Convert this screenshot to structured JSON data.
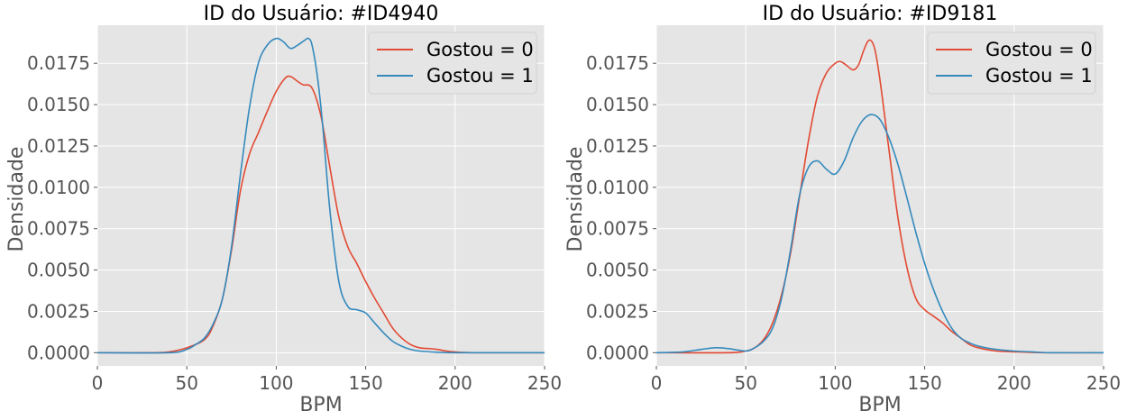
{
  "chart_data": [
    {
      "type": "line",
      "title": "ID do Usuário: #ID4940",
      "xlabel": "BPM",
      "ylabel": "Densidade",
      "xlim": [
        0,
        250
      ],
      "ylim": [
        -0.0008,
        0.0198
      ],
      "xticks": [
        0,
        50,
        100,
        150,
        200,
        250
      ],
      "xtick_labels": [
        "0",
        "50",
        "100",
        "150",
        "200",
        "250"
      ],
      "yticks": [
        0,
        0.0025,
        0.005,
        0.0075,
        0.01,
        0.0125,
        0.015,
        0.0175
      ],
      "ytick_labels": [
        "0.0000",
        "0.0025",
        "0.0050",
        "0.0075",
        "0.0100",
        "0.0125",
        "0.0150",
        "0.0175"
      ],
      "grid": true,
      "legend_position": "top-right",
      "series": [
        {
          "name": "Gostou = 0",
          "color": "#E24A33",
          "x": [
            0,
            30,
            40,
            50,
            60,
            65,
            70,
            75,
            80,
            85,
            90,
            95,
            100,
            105,
            108,
            112,
            115,
            120,
            125,
            130,
            135,
            140,
            145,
            150,
            155,
            160,
            165,
            170,
            175,
            180,
            185,
            190,
            195,
            200,
            210,
            250
          ],
          "y": [
            0,
            0,
            5e-05,
            0.0003,
            0.0008,
            0.0017,
            0.0033,
            0.0062,
            0.0098,
            0.012,
            0.0133,
            0.0146,
            0.0158,
            0.0166,
            0.0167,
            0.0164,
            0.0162,
            0.016,
            0.0143,
            0.0112,
            0.0082,
            0.0064,
            0.0054,
            0.0043,
            0.0033,
            0.0024,
            0.0015,
            0.0009,
            0.0005,
            0.0003,
            0.00025,
            0.0002,
            0.0001,
            5e-05,
            0,
            0
          ]
        },
        {
          "name": "Gostou = 1",
          "color": "#348ABD",
          "x": [
            0,
            40,
            50,
            55,
            60,
            65,
            70,
            75,
            80,
            85,
            90,
            95,
            100,
            104,
            108,
            112,
            116,
            118,
            120,
            123,
            126,
            130,
            135,
            140,
            145,
            150,
            155,
            160,
            165,
            170,
            175,
            180,
            190,
            200,
            250
          ],
          "y": [
            0,
            0,
            0.0002,
            0.0005,
            0.0009,
            0.0018,
            0.0033,
            0.0064,
            0.0108,
            0.0148,
            0.0175,
            0.0186,
            0.019,
            0.0188,
            0.0184,
            0.0186,
            0.0189,
            0.019,
            0.0186,
            0.0167,
            0.0137,
            0.0086,
            0.0043,
            0.0028,
            0.0026,
            0.0024,
            0.0018,
            0.0012,
            0.0007,
            0.0004,
            0.0002,
            0.0001,
            3e-05,
            0,
            0
          ]
        }
      ]
    },
    {
      "type": "line",
      "title": "ID do Usuário: #ID9181",
      "xlabel": "BPM",
      "ylabel": "Densidade",
      "xlim": [
        0,
        250
      ],
      "ylim": [
        -0.0008,
        0.0198
      ],
      "xticks": [
        0,
        50,
        100,
        150,
        200,
        250
      ],
      "xtick_labels": [
        "0",
        "50",
        "100",
        "150",
        "200",
        "250"
      ],
      "yticks": [
        0,
        0.0025,
        0.005,
        0.0075,
        0.01,
        0.0125,
        0.015,
        0.0175
      ],
      "ytick_labels": [
        "0.0000",
        "0.0025",
        "0.0050",
        "0.0075",
        "0.0100",
        "0.0125",
        "0.0150",
        "0.0175"
      ],
      "grid": true,
      "legend_position": "top-right",
      "series": [
        {
          "name": "Gostou = 0",
          "color": "#E24A33",
          "x": [
            0,
            40,
            50,
            55,
            60,
            65,
            70,
            75,
            80,
            85,
            90,
            95,
            100,
            103,
            106,
            110,
            113,
            116,
            119,
            122,
            125,
            130,
            135,
            140,
            145,
            150,
            155,
            160,
            165,
            170,
            175,
            180,
            190,
            200,
            220,
            250
          ],
          "y": [
            0,
            0,
            0.0001,
            0.0003,
            0.0008,
            0.0018,
            0.0035,
            0.006,
            0.0094,
            0.0128,
            0.0155,
            0.0169,
            0.0175,
            0.0176,
            0.0174,
            0.0171,
            0.0174,
            0.0183,
            0.0189,
            0.0184,
            0.0165,
            0.0123,
            0.0082,
            0.0052,
            0.0033,
            0.0026,
            0.0022,
            0.0018,
            0.0013,
            0.0009,
            0.0005,
            0.0003,
            0.0001,
            5e-05,
            0,
            0
          ]
        },
        {
          "name": "Gostou = 1",
          "color": "#348ABD",
          "x": [
            0,
            15,
            25,
            33,
            40,
            50,
            55,
            60,
            65,
            70,
            75,
            80,
            85,
            90,
            95,
            100,
            105,
            110,
            115,
            120,
            125,
            130,
            135,
            140,
            145,
            150,
            155,
            160,
            165,
            170,
            175,
            180,
            190,
            200,
            210,
            220,
            250
          ],
          "y": [
            0,
            5e-05,
            0.0002,
            0.0003,
            0.00025,
            0.0001,
            0.0003,
            0.0007,
            0.0015,
            0.0033,
            0.0062,
            0.0095,
            0.0112,
            0.0116,
            0.0111,
            0.0108,
            0.0116,
            0.013,
            0.014,
            0.0144,
            0.0141,
            0.013,
            0.0114,
            0.0094,
            0.0073,
            0.0054,
            0.0038,
            0.0025,
            0.0015,
            0.0009,
            0.0006,
            0.0004,
            0.0002,
            0.0001,
            5e-05,
            0,
            0
          ]
        }
      ]
    }
  ]
}
